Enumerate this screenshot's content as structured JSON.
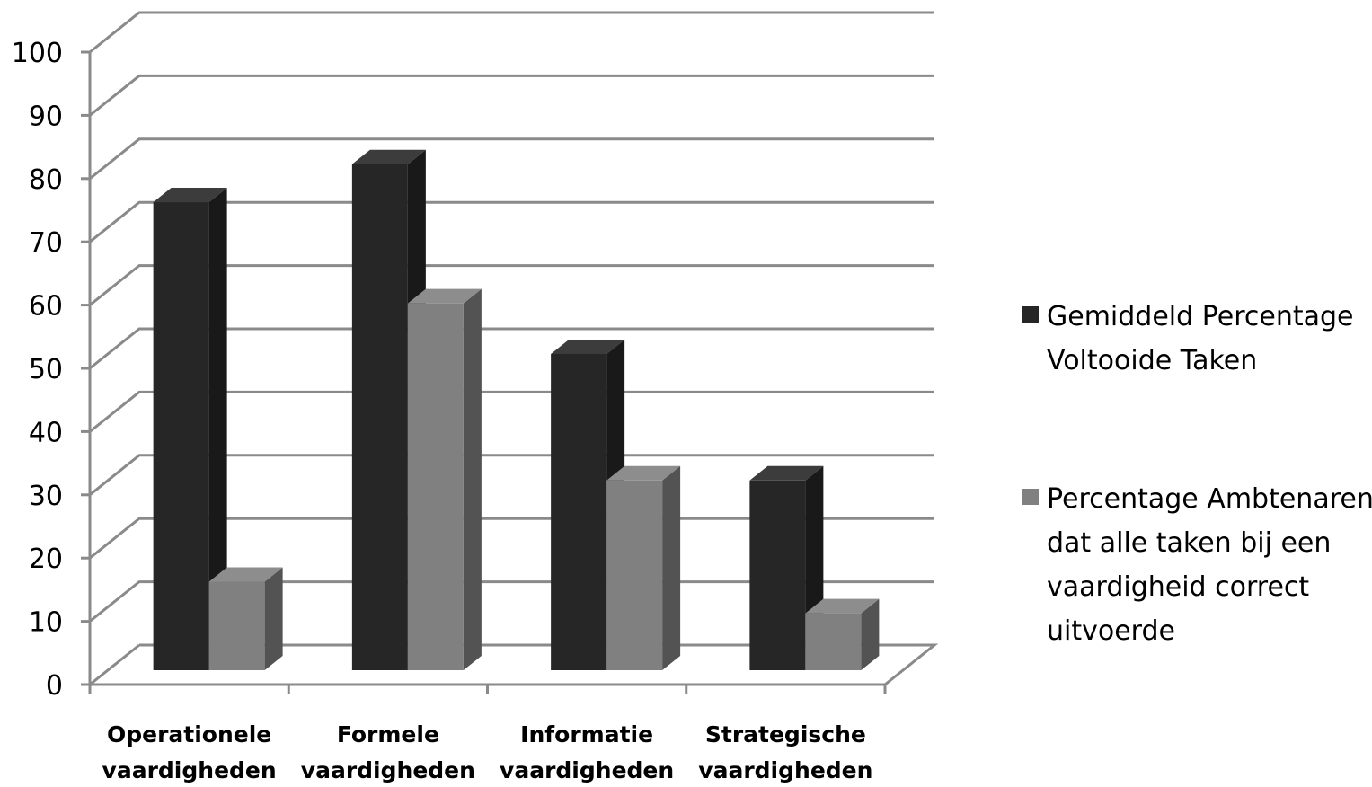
{
  "chart_data": {
    "type": "bar",
    "variant": "3d-clustered-column",
    "title": "",
    "xlabel": "",
    "ylabel": "",
    "ylim": [
      0,
      100
    ],
    "y_ticks": [
      "0",
      "10",
      "20",
      "30",
      "40",
      "50",
      "60",
      "70",
      "80",
      "90",
      "100"
    ],
    "categories": [
      [
        "Operationele",
        "vaardigheden"
      ],
      [
        "Formele",
        "vaardigheden"
      ],
      [
        "Informatie",
        "vaardigheden"
      ],
      [
        "Strategische",
        "vaardigheden"
      ]
    ],
    "series": [
      {
        "name": [
          "Gemiddeld Percentage",
          "Voltooide Taken"
        ],
        "values": [
          74,
          80,
          50,
          30
        ],
        "color": "#262626"
      },
      {
        "name": [
          "Percentage Ambtenaren",
          "dat alle taken bij een",
          "vaardigheid correct",
          "uitvoerde"
        ],
        "values": [
          14,
          58,
          30,
          9
        ],
        "color": "#808080"
      }
    ],
    "grid": true,
    "legend": "right"
  }
}
